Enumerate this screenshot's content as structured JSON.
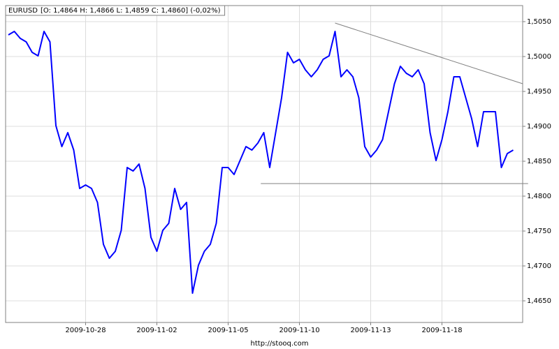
{
  "chart_data": {
    "type": "line",
    "source": "http://stooq.com",
    "legend_info": "[O: 1,4864  H: 1,4866  L: 1,4859  C: 1,4860] (-0,02%)",
    "categories": [
      null,
      null,
      null,
      null,
      null,
      null,
      null,
      null,
      null,
      null,
      null,
      null,
      null,
      "2009-10-28",
      null,
      null,
      null,
      null,
      null,
      null,
      null,
      null,
      null,
      null,
      null,
      "2009-11-02",
      null,
      null,
      null,
      null,
      null,
      null,
      null,
      null,
      null,
      null,
      null,
      "2009-11-05",
      null,
      null,
      null,
      null,
      null,
      null,
      null,
      null,
      null,
      null,
      null,
      "2009-11-10",
      null,
      null,
      null,
      null,
      null,
      null,
      null,
      null,
      null,
      null,
      null,
      "2009-11-13",
      null,
      null,
      null,
      null,
      null,
      null,
      null,
      null,
      null,
      null,
      null,
      "2009-11-18",
      null,
      null,
      null,
      null,
      null,
      null,
      null,
      null,
      null,
      null,
      null,
      null
    ],
    "series": [
      {
        "name": "EURUSD",
        "color": "#0000ff",
        "values": [
          1.5031,
          1.5036,
          1.5026,
          1.5021,
          1.5006,
          1.5001,
          1.5036,
          1.5021,
          1.4901,
          1.4871,
          1.4891,
          1.4866,
          1.4811,
          1.4816,
          1.4811,
          1.4791,
          1.4731,
          1.4711,
          1.4721,
          1.4751,
          1.4841,
          1.4836,
          1.4846,
          1.4811,
          1.4741,
          1.4721,
          1.4751,
          1.4761,
          1.4811,
          1.4781,
          1.4791,
          1.4661,
          1.4701,
          1.4721,
          1.4731,
          1.4761,
          1.4841,
          1.4841,
          1.4831,
          1.4851,
          1.4871,
          1.4866,
          1.4876,
          1.4891,
          1.4841,
          1.4891,
          1.4941,
          1.5006,
          1.4991,
          1.4996,
          1.4981,
          1.4971,
          1.4981,
          1.4996,
          1.5001,
          1.5036,
          1.4971,
          1.4981,
          1.4971,
          1.4941,
          1.4871,
          1.4856,
          1.4866,
          1.4881,
          1.4921,
          1.4961,
          1.4986,
          1.4976,
          1.4971,
          1.4981,
          1.4961,
          1.4891,
          1.4851,
          1.4881,
          1.4921,
          1.4971,
          1.4971,
          1.4941,
          1.4911,
          1.4871,
          1.4921,
          1.4921,
          1.4921,
          1.4841,
          1.4861,
          1.4866
        ]
      }
    ],
    "trendlines": [
      {
        "x": [
          55,
          86.6
        ],
        "y": [
          1.5048,
          1.4961
        ],
        "color": "#808080"
      },
      {
        "x": [
          42.5,
          87.5
        ],
        "y": [
          1.4818,
          1.4818
        ],
        "color": "#808080"
      }
    ],
    "ylim": [
      1.4619,
      1.5073
    ],
    "yticks": [
      {
        "value": 1.465,
        "label": "1,4650"
      },
      {
        "value": 1.47,
        "label": "1,4700"
      },
      {
        "value": 1.475,
        "label": "1,4750"
      },
      {
        "value": 1.48,
        "label": "1,4800"
      },
      {
        "value": 1.485,
        "label": "1,4850"
      },
      {
        "value": 1.49,
        "label": "1,4900"
      },
      {
        "value": 1.495,
        "label": "1,4950"
      },
      {
        "value": 1.5,
        "label": "1,5000"
      },
      {
        "value": 1.505,
        "label": "1,5050"
      }
    ],
    "grid": true
  }
}
